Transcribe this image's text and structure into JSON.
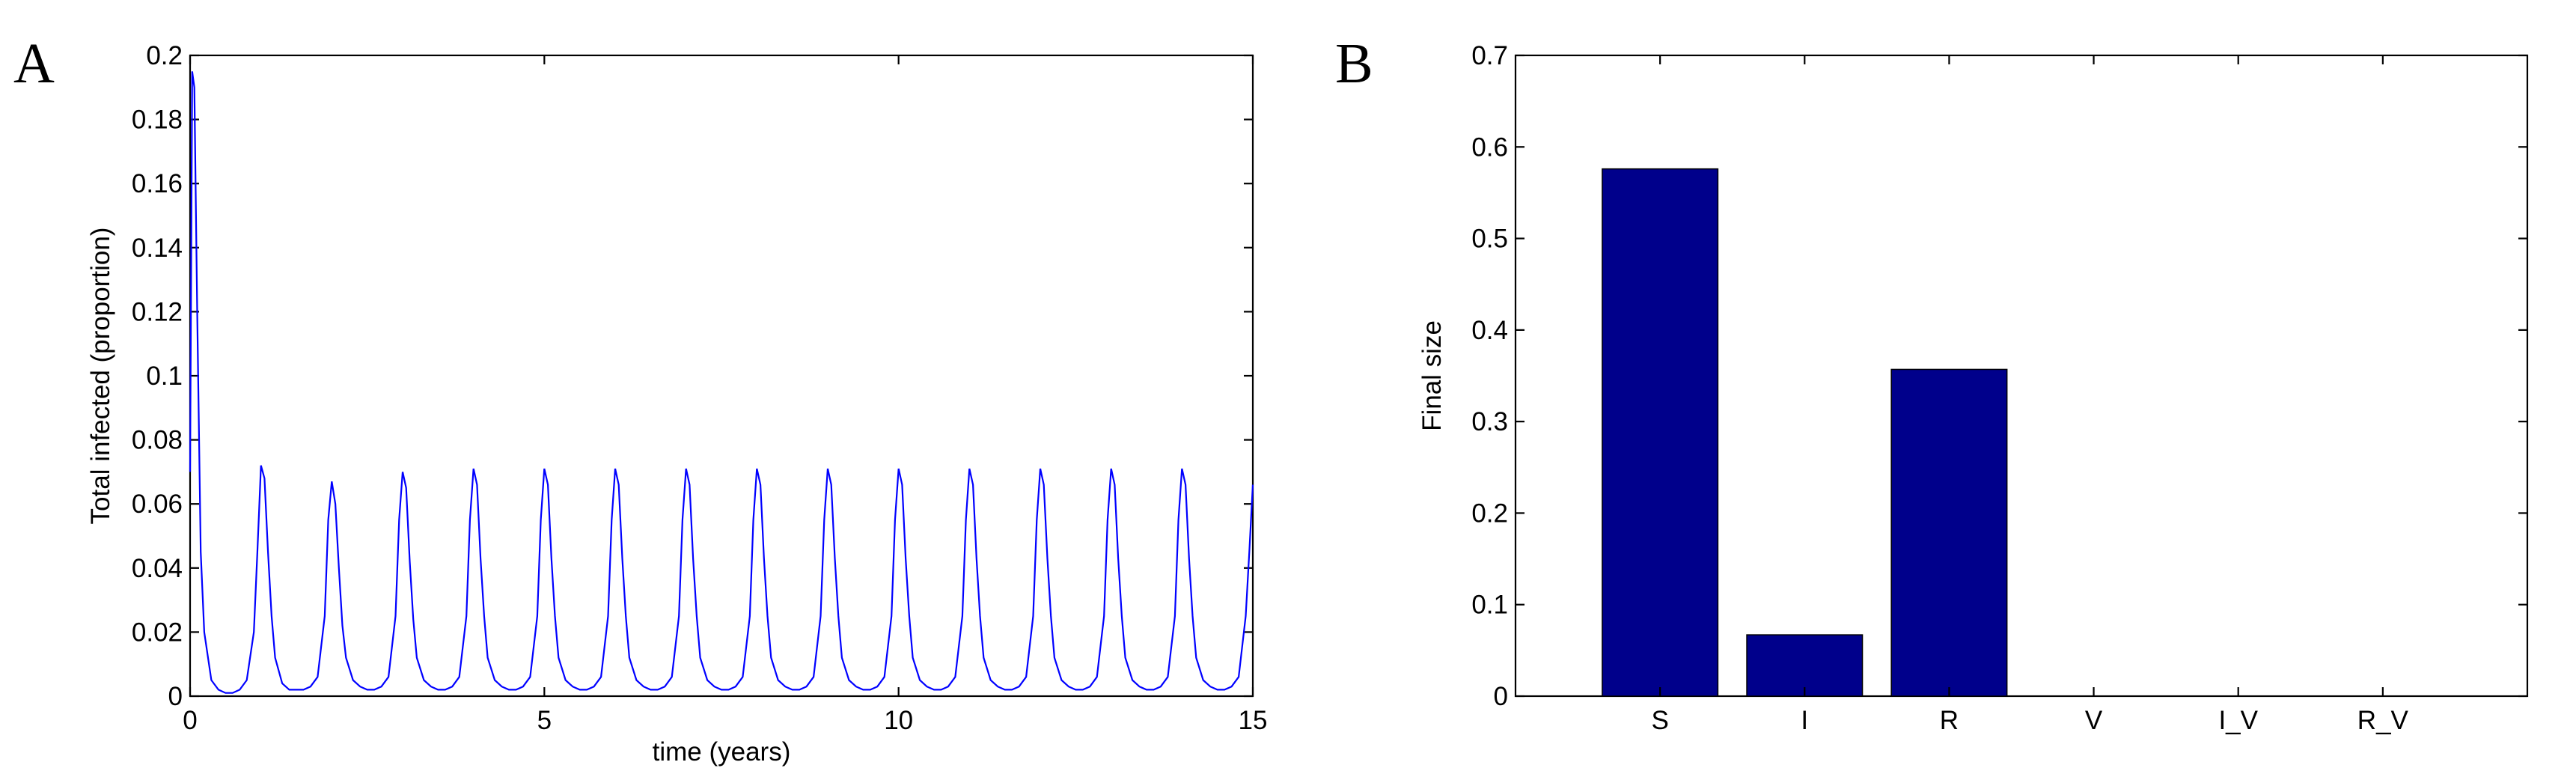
{
  "chart_data": [
    {
      "panel": "A",
      "type": "line",
      "title": "",
      "xlabel": "time (years)",
      "ylabel": "Total infected (proportion)",
      "xlim": [
        0,
        15
      ],
      "ylim": [
        0,
        0.2
      ],
      "xticks": [
        0,
        5,
        10,
        15
      ],
      "yticks": [
        0,
        0.02,
        0.04,
        0.06,
        0.08,
        0.1,
        0.12,
        0.14,
        0.16,
        0.18,
        0.2
      ],
      "ytick_labels": [
        "0",
        "0.02",
        "0.04",
        "0.06",
        "0.08",
        "0.1",
        "0.12",
        "0.14",
        "0.16",
        "0.18",
        "0.2"
      ],
      "grid": false,
      "color": "#0000ff",
      "series": [
        {
          "x": [
            0,
            0.03,
            0.06,
            0.1,
            0.15,
            0.2,
            0.3,
            0.4,
            0.5,
            0.6,
            0.7,
            0.8,
            0.9,
            0.95,
            1.0,
            1.05,
            1.1,
            1.15,
            1.2,
            1.3,
            1.4,
            1.5,
            1.6,
            1.7,
            1.8,
            1.9,
            1.95,
            2.0,
            2.05,
            2.1,
            2.15,
            2.2,
            2.3,
            2.4,
            2.5,
            2.6,
            2.7,
            2.8,
            2.9,
            2.95,
            3.0,
            3.05,
            3.1,
            3.15,
            3.2,
            3.3,
            3.4,
            3.5,
            3.6,
            3.7,
            3.8,
            3.9,
            3.95,
            4.0,
            4.05,
            4.1,
            4.15,
            4.2,
            4.3,
            4.4,
            4.5,
            4.6,
            4.7,
            4.8,
            4.9,
            4.95,
            5.0,
            5.05,
            5.1,
            5.15,
            5.2,
            5.3,
            5.4,
            5.5,
            5.6,
            5.7,
            5.8,
            5.9,
            5.95,
            6.0,
            6.05,
            6.1,
            6.15,
            6.2,
            6.3,
            6.4,
            6.5,
            6.6,
            6.7,
            6.8,
            6.9,
            6.95,
            7.0,
            7.05,
            7.1,
            7.15,
            7.2,
            7.3,
            7.4,
            7.5,
            7.6,
            7.7,
            7.8,
            7.9,
            7.95,
            8.0,
            8.05,
            8.1,
            8.15,
            8.2,
            8.3,
            8.4,
            8.5,
            8.6,
            8.7,
            8.8,
            8.9,
            8.95,
            9.0,
            9.05,
            9.1,
            9.15,
            9.2,
            9.3,
            9.4,
            9.5,
            9.6,
            9.7,
            9.8,
            9.9,
            9.95,
            10.0,
            10.05,
            10.1,
            10.15,
            10.2,
            10.3,
            10.4,
            10.5,
            10.6,
            10.7,
            10.8,
            10.9,
            10.95,
            11.0,
            11.05,
            11.1,
            11.15,
            11.2,
            11.3,
            11.4,
            11.5,
            11.6,
            11.7,
            11.8,
            11.9,
            11.95,
            12.0,
            12.05,
            12.1,
            12.15,
            12.2,
            12.3,
            12.4,
            12.5,
            12.6,
            12.7,
            12.8,
            12.9,
            12.95,
            13.0,
            13.05,
            13.1,
            13.15,
            13.2,
            13.3,
            13.4,
            13.5,
            13.6,
            13.7,
            13.8,
            13.9,
            13.95,
            14.0,
            14.05,
            14.1,
            14.15,
            14.2,
            14.3,
            14.4,
            14.5,
            14.6,
            14.7,
            14.8,
            14.9,
            14.95,
            15.0
          ],
          "y": [
            0.07,
            0.195,
            0.19,
            0.12,
            0.045,
            0.02,
            0.005,
            0.002,
            0.001,
            0.001,
            0.002,
            0.005,
            0.02,
            0.045,
            0.072,
            0.068,
            0.045,
            0.025,
            0.012,
            0.004,
            0.002,
            0.002,
            0.002,
            0.003,
            0.006,
            0.025,
            0.055,
            0.067,
            0.06,
            0.04,
            0.022,
            0.012,
            0.005,
            0.003,
            0.002,
            0.002,
            0.003,
            0.006,
            0.025,
            0.055,
            0.07,
            0.065,
            0.042,
            0.024,
            0.012,
            0.005,
            0.003,
            0.002,
            0.002,
            0.003,
            0.006,
            0.025,
            0.055,
            0.071,
            0.066,
            0.043,
            0.025,
            0.012,
            0.005,
            0.003,
            0.002,
            0.002,
            0.003,
            0.006,
            0.025,
            0.055,
            0.071,
            0.066,
            0.043,
            0.025,
            0.012,
            0.005,
            0.003,
            0.002,
            0.002,
            0.003,
            0.006,
            0.025,
            0.055,
            0.071,
            0.066,
            0.043,
            0.025,
            0.012,
            0.005,
            0.003,
            0.002,
            0.002,
            0.003,
            0.006,
            0.025,
            0.055,
            0.071,
            0.066,
            0.043,
            0.025,
            0.012,
            0.005,
            0.003,
            0.002,
            0.002,
            0.003,
            0.006,
            0.025,
            0.055,
            0.071,
            0.066,
            0.043,
            0.025,
            0.012,
            0.005,
            0.003,
            0.002,
            0.002,
            0.003,
            0.006,
            0.025,
            0.055,
            0.071,
            0.066,
            0.043,
            0.025,
            0.012,
            0.005,
            0.003,
            0.002,
            0.002,
            0.003,
            0.006,
            0.025,
            0.055,
            0.071,
            0.066,
            0.043,
            0.025,
            0.012,
            0.005,
            0.003,
            0.002,
            0.002,
            0.003,
            0.006,
            0.025,
            0.055,
            0.071,
            0.066,
            0.043,
            0.025,
            0.012,
            0.005,
            0.003,
            0.002,
            0.002,
            0.003,
            0.006,
            0.025,
            0.055,
            0.071,
            0.066,
            0.043,
            0.025,
            0.012,
            0.005,
            0.003,
            0.002,
            0.002,
            0.003,
            0.006,
            0.025,
            0.055,
            0.071,
            0.066,
            0.043,
            0.025,
            0.012,
            0.005,
            0.003,
            0.002,
            0.002,
            0.003,
            0.006,
            0.025,
            0.055,
            0.071,
            0.066,
            0.043,
            0.025,
            0.012,
            0.005,
            0.003,
            0.002,
            0.002,
            0.003,
            0.006,
            0.025,
            0.045,
            0.066
          ]
        }
      ]
    },
    {
      "panel": "B",
      "type": "bar",
      "title": "",
      "xlabel": "",
      "ylabel": "Final size",
      "categories": [
        "S",
        "I",
        "R",
        "V",
        "I_V",
        "R_V"
      ],
      "values": [
        0.576,
        0.067,
        0.357,
        0,
        0,
        0
      ],
      "ylim": [
        0,
        0.7
      ],
      "yticks": [
        0,
        0.1,
        0.2,
        0.3,
        0.4,
        0.5,
        0.6,
        0.7
      ],
      "ytick_labels": [
        "0",
        "0.1",
        "0.2",
        "0.3",
        "0.4",
        "0.5",
        "0.6",
        "0.7"
      ],
      "xlim": [
        0,
        7
      ],
      "grid": false,
      "color": "#00008b"
    }
  ]
}
